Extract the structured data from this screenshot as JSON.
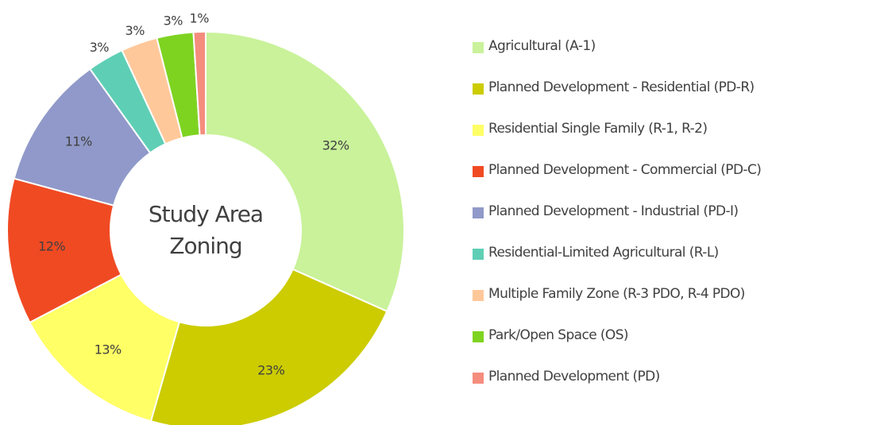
{
  "chart_data": {
    "type": "donut",
    "title": "Study Area Zoning",
    "categories": [
      "Agricultural (A-1)",
      "Planned Development - Residential (PD-R)",
      "Residential Single Family (R-1, R-2)",
      "Planned Development - Commercial (PD-C)",
      "Planned Development - Industrial (PD-I)",
      "Residential-Limited Agricultural (R-L)",
      "Multiple Family Zone (R-3 PDO, R-4 PDO)",
      "Park/Open Space (OS)",
      "Planned Development (PD)"
    ],
    "values": [
      32,
      23,
      13,
      12,
      11,
      3,
      3,
      3,
      1
    ],
    "value_labels": [
      "32%",
      "23%",
      "13%",
      "12%",
      "11%",
      "3%",
      "3%",
      "3%",
      "1%"
    ],
    "colors": [
      "#c9f29a",
      "#cccc00",
      "#ffff66",
      "#f04a23",
      "#9099c9",
      "#5ecfb5",
      "#ffc89a",
      "#7ed321",
      "#f58d7e"
    ],
    "legend": "right"
  }
}
